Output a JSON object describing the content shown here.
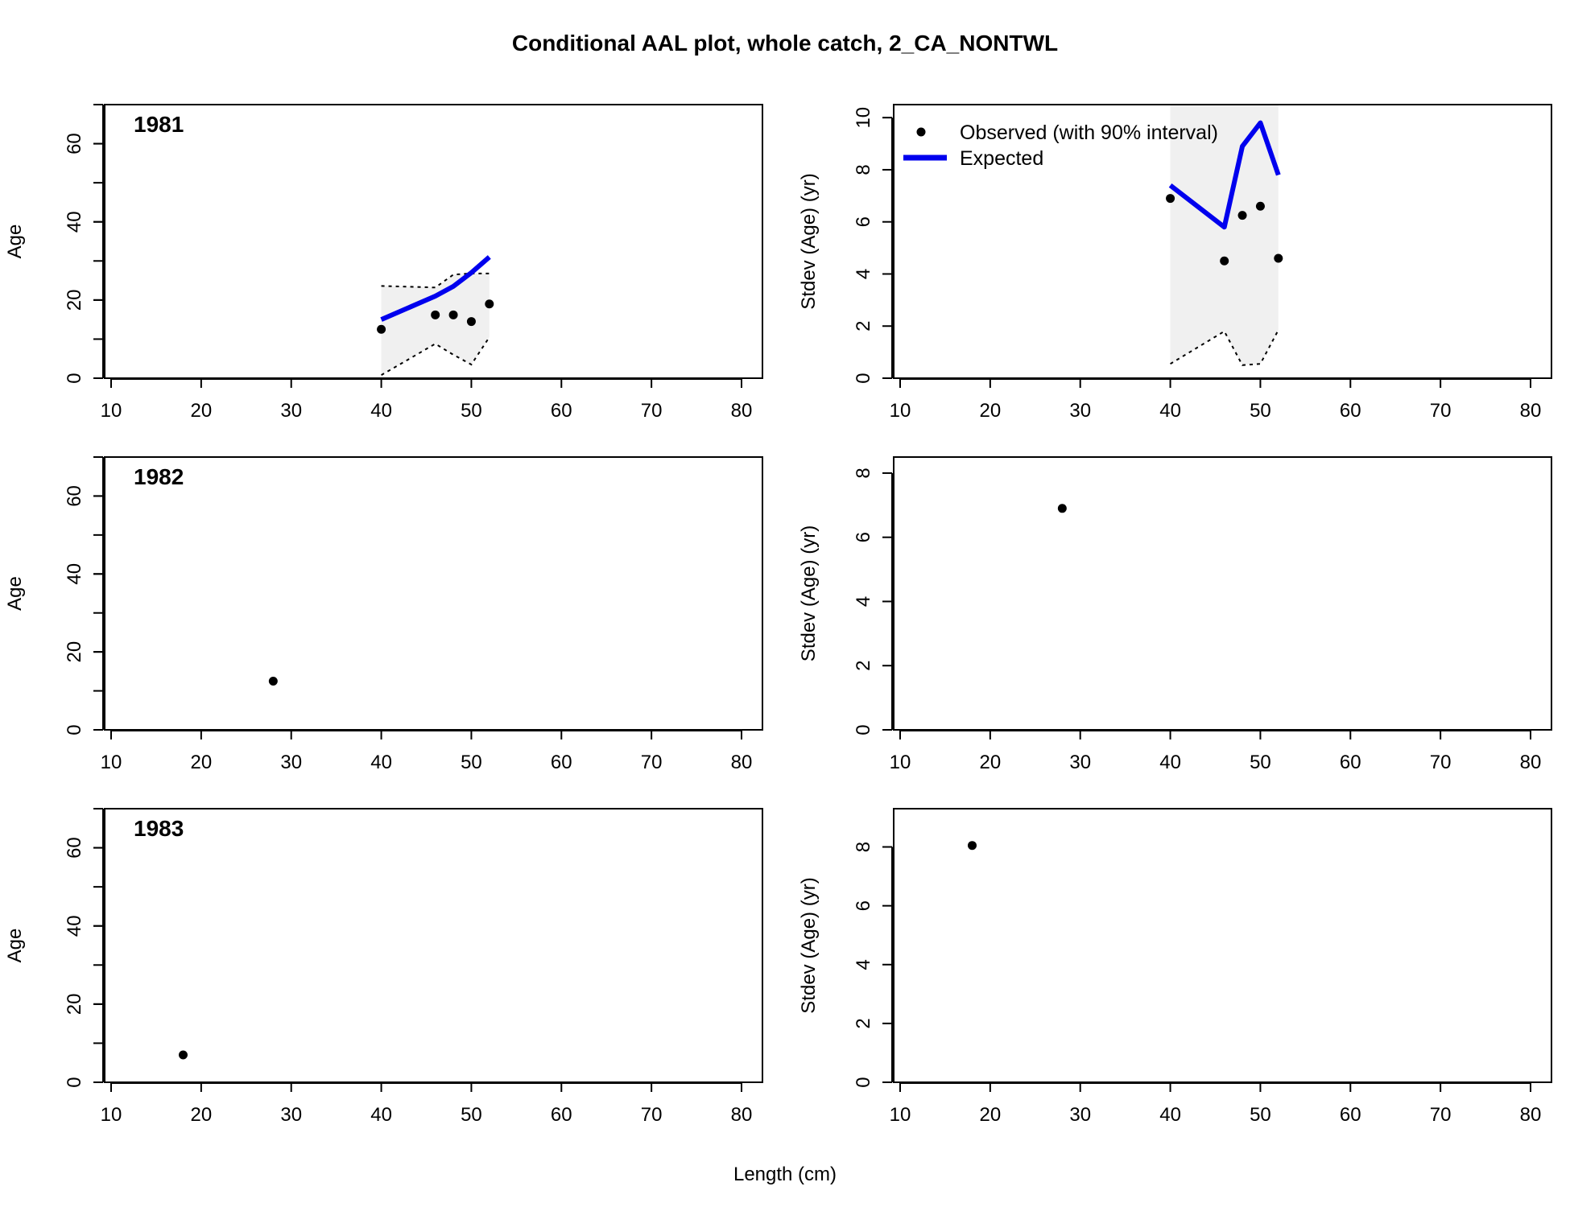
{
  "title": "Conditional AAL plot, whole catch, 2_CA_NONTWL",
  "xlabel": "Length (cm)",
  "legend": {
    "observed_label": "Observed (with 90% interval)",
    "expected_label": "Expected"
  },
  "colors": {
    "expected": "#0000ee",
    "observed": "#000000",
    "interval_fill": "#f0f0f0"
  },
  "chart_data": [
    {
      "type": "line",
      "panel": "age",
      "year": "1981",
      "ylabel": "Age",
      "xlim": [
        10,
        80
      ],
      "ylim": [
        0,
        70
      ],
      "x_ticks": [
        10,
        20,
        30,
        40,
        50,
        60,
        70,
        80
      ],
      "y_ticks": [
        0,
        20,
        40,
        60
      ],
      "y_minor_ticks": [
        0,
        10,
        20,
        30,
        40,
        50,
        60,
        70
      ],
      "observed": {
        "x": [
          40,
          46,
          48,
          50,
          52
        ],
        "y": [
          12.5,
          16.2,
          16.2,
          14.5,
          19.0
        ]
      },
      "expected": {
        "x": [
          40,
          46,
          48,
          50,
          52
        ],
        "y": [
          15.0,
          21.0,
          23.5,
          27.0,
          31.0
        ]
      },
      "interval_upper": {
        "x": [
          40,
          46,
          48,
          50,
          52
        ],
        "y": [
          23.6,
          23.2,
          26.5,
          26.8,
          26.8
        ]
      },
      "interval_lower": {
        "x": [
          40,
          46,
          48,
          50,
          52
        ],
        "y": [
          0.8,
          8.8,
          6.0,
          3.5,
          10.5
        ]
      }
    },
    {
      "type": "line",
      "panel": "stdev",
      "year": "1981",
      "ylabel": "Stdev (Age) (yr)",
      "xlim": [
        10,
        80
      ],
      "ylim": [
        0,
        10.5
      ],
      "x_ticks": [
        10,
        20,
        30,
        40,
        50,
        60,
        70,
        80
      ],
      "y_ticks": [
        0,
        2,
        4,
        6,
        8,
        10
      ],
      "observed": {
        "x": [
          40,
          46,
          48,
          50,
          52
        ],
        "y": [
          6.9,
          4.5,
          6.25,
          6.6,
          4.6
        ]
      },
      "expected": {
        "x": [
          40,
          46,
          48,
          50,
          52
        ],
        "y": [
          7.4,
          5.8,
          8.9,
          9.8,
          7.8
        ]
      },
      "interval_upper": {
        "x": [
          40,
          52
        ],
        "y": [
          10.5,
          10.5
        ]
      },
      "interval_lower": {
        "x": [
          40,
          46,
          48,
          50,
          52
        ],
        "y": [
          0.55,
          1.8,
          0.5,
          0.55,
          1.85
        ]
      },
      "show_legend": true
    },
    {
      "type": "scatter",
      "panel": "age",
      "year": "1982",
      "ylabel": "Age",
      "xlim": [
        10,
        80
      ],
      "ylim": [
        0,
        70
      ],
      "x_ticks": [
        10,
        20,
        30,
        40,
        50,
        60,
        70,
        80
      ],
      "y_ticks": [
        0,
        20,
        40,
        60
      ],
      "y_minor_ticks": [
        0,
        10,
        20,
        30,
        40,
        50,
        60,
        70
      ],
      "observed": {
        "x": [
          28
        ],
        "y": [
          12.5
        ]
      }
    },
    {
      "type": "scatter",
      "panel": "stdev",
      "year": "1982",
      "ylabel": "Stdev (Age) (yr)",
      "xlim": [
        10,
        80
      ],
      "ylim": [
        0,
        8.5
      ],
      "x_ticks": [
        10,
        20,
        30,
        40,
        50,
        60,
        70,
        80
      ],
      "y_ticks": [
        0,
        2,
        4,
        6,
        8
      ],
      "observed": {
        "x": [
          28
        ],
        "y": [
          6.9
        ]
      }
    },
    {
      "type": "scatter",
      "panel": "age",
      "year": "1983",
      "ylabel": "Age",
      "xlim": [
        10,
        80
      ],
      "ylim": [
        0,
        70
      ],
      "x_ticks": [
        10,
        20,
        30,
        40,
        50,
        60,
        70,
        80
      ],
      "y_ticks": [
        0,
        20,
        40,
        60
      ],
      "y_minor_ticks": [
        0,
        10,
        20,
        30,
        40,
        50,
        60,
        70
      ],
      "observed": {
        "x": [
          18
        ],
        "y": [
          7.0
        ]
      }
    },
    {
      "type": "scatter",
      "panel": "stdev",
      "year": "1983",
      "ylabel": "Stdev (Age) (yr)",
      "xlim": [
        10,
        80
      ],
      "ylim": [
        0,
        9.3
      ],
      "x_ticks": [
        10,
        20,
        30,
        40,
        50,
        60,
        70,
        80
      ],
      "y_ticks": [
        0,
        2,
        4,
        6,
        8
      ],
      "observed": {
        "x": [
          18
        ],
        "y": [
          8.05
        ]
      }
    }
  ]
}
